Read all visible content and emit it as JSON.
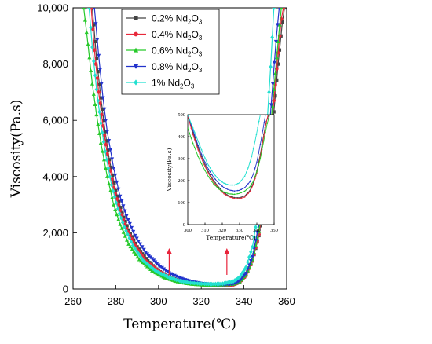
{
  "chart_data": [
    {
      "type": "line",
      "title": "",
      "xlabel": "Temperature(℃)",
      "ylabel": "Viscosity(Pa.s)",
      "xlim": [
        260,
        360
      ],
      "ylim": [
        0,
        10000
      ],
      "xticks": [
        "260",
        "280",
        "300",
        "320",
        "340",
        "360"
      ],
      "yticks": [
        "0",
        "2,000",
        "4,000",
        "6,000",
        "8,000",
        "10,000"
      ],
      "legend_position": "top-left",
      "annotations": [
        {
          "type": "arrow",
          "x": 305,
          "y": 600,
          "color": "#e8233a"
        },
        {
          "type": "arrow",
          "x": 332,
          "y": 600,
          "color": "#e8233a"
        }
      ],
      "series": [
        {
          "name": "0.2% Nd2O3",
          "color": "#444444",
          "marker": "square",
          "x": [
            269,
            271,
            273,
            275,
            277,
            280,
            283,
            286,
            290,
            295,
            300,
            305,
            310,
            315,
            320,
            325,
            330,
            335,
            338,
            341,
            344,
            347,
            350,
            352,
            354,
            356,
            358,
            359
          ],
          "y": [
            10000,
            8200,
            6800,
            5600,
            4600,
            3500,
            2700,
            2100,
            1500,
            1000,
            650,
            430,
            290,
            200,
            160,
            135,
            130,
            160,
            250,
            500,
            1000,
            1900,
            3300,
            4700,
            6300,
            8000,
            9500,
            10000
          ]
        },
        {
          "name": "0.4% Nd2O3",
          "color": "#e8283a",
          "marker": "circle",
          "x": [
            268.5,
            270,
            272,
            274,
            276,
            279,
            282,
            285,
            289,
            294,
            300,
            305,
            310,
            315,
            320,
            325,
            330,
            335,
            338,
            341,
            344,
            347,
            350,
            352,
            354,
            356,
            357.5,
            358.5
          ],
          "y": [
            10000,
            8500,
            7000,
            5800,
            4800,
            3600,
            2800,
            2150,
            1550,
            1000,
            640,
            420,
            280,
            195,
            155,
            128,
            122,
            150,
            240,
            480,
            1000,
            1950,
            3500,
            5000,
            6700,
            8400,
            9600,
            10000
          ]
        },
        {
          "name": "0.6% Nd2O3",
          "color": "#27c92a",
          "marker": "triangle-up",
          "x": [
            265,
            267,
            269,
            271,
            273,
            276,
            279,
            282,
            286,
            291,
            297,
            303,
            309,
            315,
            320,
            325,
            330,
            335,
            338,
            341,
            344,
            347,
            350,
            352,
            354,
            356,
            357.5
          ],
          "y": [
            10000,
            8700,
            7300,
            6200,
            5200,
            4000,
            3000,
            2300,
            1600,
            1050,
            650,
            400,
            260,
            180,
            150,
            140,
            148,
            175,
            260,
            520,
            1050,
            2050,
            3700,
            5300,
            7100,
            8800,
            10000
          ]
        },
        {
          "name": "0.8% Nd2O3",
          "color": "#2233cc",
          "marker": "triangle-down",
          "x": [
            270,
            272,
            274,
            276,
            279,
            282,
            285,
            289,
            294,
            300,
            305,
            310,
            315,
            320,
            325,
            330,
            335,
            338,
            341,
            344,
            347,
            350,
            352,
            353.5,
            355,
            356.5
          ],
          "y": [
            10000,
            8300,
            6800,
            5600,
            4300,
            3300,
            2600,
            1900,
            1300,
            850,
            570,
            390,
            270,
            200,
            165,
            160,
            190,
            290,
            560,
            1150,
            2300,
            4100,
            5800,
            7300,
            8800,
            10000
          ]
        },
        {
          "name": "1% Nd2O3",
          "color": "#22e0d0",
          "marker": "diamond",
          "x": [
            267.5,
            269,
            271,
            273,
            275,
            278,
            281,
            284,
            288,
            293,
            299,
            305,
            310,
            315,
            320,
            325,
            330,
            335,
            338,
            341,
            344,
            347,
            349,
            351,
            352.5,
            354
          ],
          "y": [
            10000,
            8600,
            7100,
            5900,
            4900,
            3700,
            2850,
            2200,
            1550,
            1000,
            630,
            410,
            290,
            220,
            190,
            175,
            190,
            270,
            420,
            780,
            1500,
            2900,
            4300,
            6100,
            7900,
            10000
          ]
        }
      ]
    },
    {
      "type": "line",
      "title": "",
      "xlabel": "Temperature(℃)",
      "ylabel": "Viscosity(Pa.s)",
      "xlim": [
        300,
        350
      ],
      "ylim": [
        0,
        500
      ],
      "xticks": [
        "300",
        "310",
        "320",
        "330",
        "340",
        "350"
      ],
      "yticks": [
        "0",
        "100",
        "200",
        "300",
        "400",
        "500"
      ],
      "series": [
        {
          "name": "0.2% Nd2O3",
          "color": "#444444",
          "x": [
            300,
            303,
            306,
            309,
            312,
            315,
            318,
            321,
            324,
            327,
            330,
            333,
            336,
            338,
            340,
            342,
            344,
            345.5,
            347
          ],
          "y": [
            500,
            420,
            350,
            290,
            240,
            200,
            170,
            145,
            130,
            123,
            122,
            130,
            155,
            190,
            245,
            320,
            410,
            470,
            500
          ]
        },
        {
          "name": "0.4% Nd2O3",
          "color": "#e8283a",
          "x": [
            300,
            303,
            306,
            309,
            312,
            315,
            318,
            321,
            324,
            327,
            330,
            333,
            336,
            338,
            340,
            342,
            344,
            345.5,
            346.5
          ],
          "y": [
            495,
            410,
            340,
            280,
            232,
            193,
            163,
            140,
            126,
            119,
            118,
            125,
            150,
            183,
            235,
            310,
            400,
            465,
            500
          ]
        },
        {
          "name": "0.6% Nd2O3",
          "color": "#27c92a",
          "x": [
            300,
            303,
            306,
            309,
            312,
            315,
            318,
            321,
            324,
            327,
            330,
            333,
            336,
            338,
            340,
            342,
            344,
            346,
            347.5
          ],
          "y": [
            440,
            370,
            310,
            260,
            218,
            185,
            162,
            148,
            140,
            138,
            142,
            152,
            172,
            198,
            240,
            300,
            380,
            460,
            500
          ]
        },
        {
          "name": "0.8% Nd2O3",
          "color": "#2233cc",
          "x": [
            300,
            303,
            306,
            309,
            312,
            315,
            318,
            321,
            324,
            327,
            330,
            333,
            336,
            338,
            340,
            342,
            343.5,
            345
          ],
          "y": [
            500,
            430,
            360,
            300,
            252,
            215,
            188,
            168,
            157,
            153,
            156,
            168,
            195,
            230,
            285,
            365,
            430,
            500
          ]
        },
        {
          "name": "1% Nd2O3",
          "color": "#22e0d0",
          "x": [
            300,
            303,
            306,
            309,
            312,
            315,
            318,
            321,
            324,
            327,
            330,
            333,
            335,
            337,
            339,
            340.5,
            342
          ],
          "y": [
            500,
            440,
            380,
            320,
            270,
            232,
            205,
            188,
            180,
            180,
            190,
            220,
            258,
            310,
            380,
            440,
            500
          ]
        }
      ]
    }
  ],
  "legend": {
    "items": [
      {
        "label": "0.2% Nd",
        "sub": "2",
        "suffix": "O",
        "sub2": "3"
      },
      {
        "label": "0.4% Nd",
        "sub": "2",
        "suffix": "O",
        "sub2": "3"
      },
      {
        "label": "0.6% Nd",
        "sub": "2",
        "suffix": "O",
        "sub2": "3"
      },
      {
        "label": "0.8% Nd",
        "sub": "2",
        "suffix": "O",
        "sub2": "3"
      },
      {
        "label": "1% Nd",
        "sub": "2",
        "suffix": "O",
        "sub2": "3"
      }
    ]
  }
}
